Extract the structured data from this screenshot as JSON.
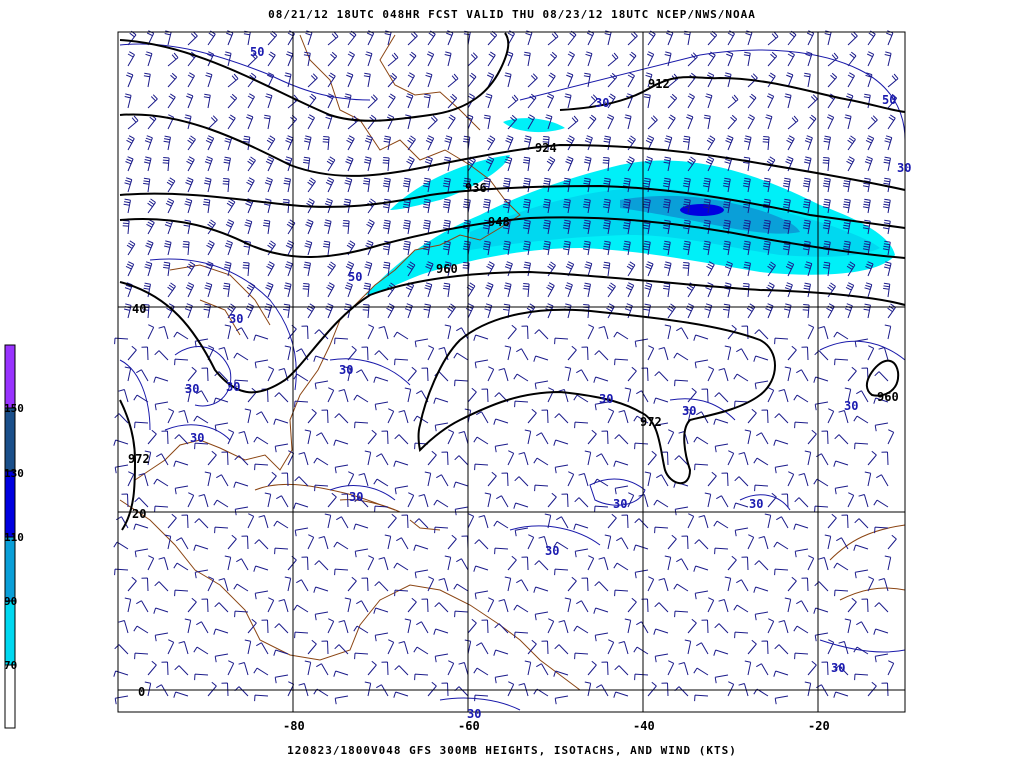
{
  "header": {
    "top_title": "08/21/12 18UTC  048HR  FCST VALID THU 08/23/12 18UTC  NCEP/NWS/NOAA",
    "bottom_title": "120823/1800V048 GFS 300MB HEIGHTS, ISOTACHS, AND WIND (KTS)"
  },
  "map": {
    "projection": "lat-lon",
    "lon_labels": [
      "-80",
      "-60",
      "-40",
      "-20"
    ],
    "lat_labels": [
      "40",
      "20",
      "0"
    ],
    "colors": {
      "height_contour": "#000000",
      "isotach_contour": "#1a1aaa",
      "coastline": "#8b4513",
      "wind_barb": "#1a1a8a",
      "grid": "#000000"
    },
    "height_labels": [
      "912",
      "924",
      "936",
      "948",
      "960",
      "972",
      "972",
      "960"
    ],
    "isotach_labels": [
      "50",
      "50",
      "30",
      "50",
      "30",
      "30",
      "30",
      "30",
      "30",
      "30",
      "30",
      "30",
      "30",
      "30",
      "30",
      "30",
      "30",
      "30",
      "30"
    ]
  },
  "colorbar": {
    "labels": [
      "150",
      "130",
      "110",
      "90",
      "70"
    ],
    "colors": [
      "#9933ff",
      "#1a4f8a",
      "#0000e0",
      "#0a9fd8",
      "#00d8f0",
      "#00f0f8",
      "#ffffff"
    ]
  }
}
